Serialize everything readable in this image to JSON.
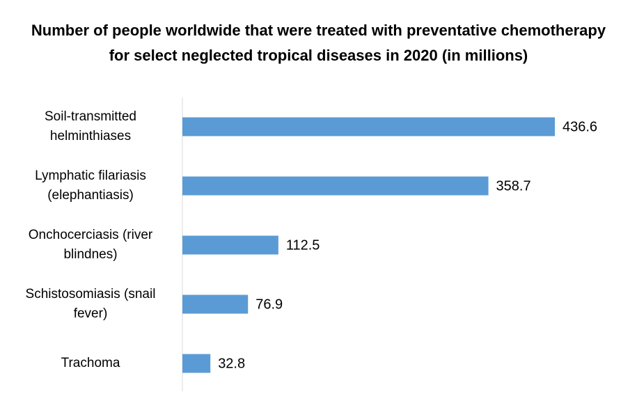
{
  "chart_data": {
    "type": "bar",
    "orientation": "horizontal",
    "title": "Number of people worldwide that were treated with preventative chemotherapy for select neglected tropical diseases in 2020 (in millions)",
    "categories": [
      "Soil-transmitted helminthiases",
      "Lymphatic filariasis (elephantiasis)",
      "Onchocerciasis (river blindnes)",
      "Schistosomiasis (snail fever)",
      "Trachoma"
    ],
    "values": [
      436.6,
      358.7,
      112.5,
      76.9,
      32.8
    ],
    "color": "#5b9bd5"
  }
}
